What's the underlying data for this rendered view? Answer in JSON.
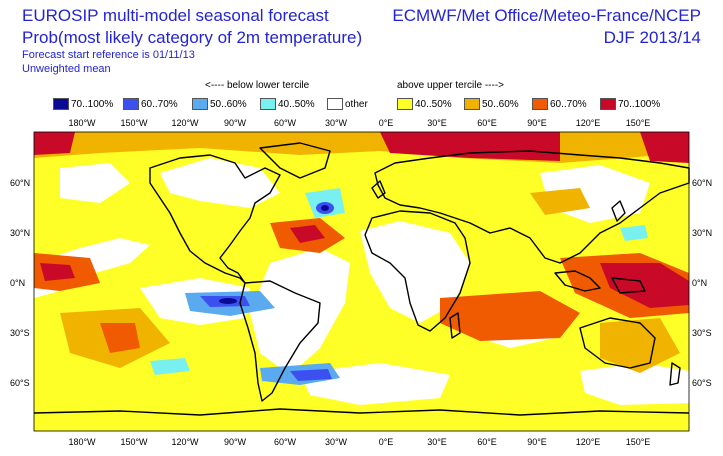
{
  "header": {
    "title_line1": "EUROSIP multi-model seasonal forecast",
    "title_line2": "Prob(most likely category of 2m temperature)",
    "forecast_ref": "Forecast start reference is 01/11/13",
    "weighting": "Unweighted mean",
    "centres": "ECMWF/Met Office/Meteo-France/NCEP",
    "season": "DJF 2013/14"
  },
  "legend": {
    "below_caption": "<---- below lower tercile",
    "above_caption": "above upper tercile ---->",
    "items": [
      {
        "label": "70..100%",
        "color": "#0a0a96"
      },
      {
        "label": "60..70%",
        "color": "#3c50f0"
      },
      {
        "label": "50..60%",
        "color": "#5aaaf0"
      },
      {
        "label": "40..50%",
        "color": "#78f0f0"
      },
      {
        "label": "other",
        "color": "#ffffff"
      },
      {
        "label": "40..50%",
        "color": "#ffff28"
      },
      {
        "label": "50..60%",
        "color": "#f0b400"
      },
      {
        "label": "60..70%",
        "color": "#f05a00"
      },
      {
        "label": "70..100%",
        "color": "#c80a28"
      }
    ]
  },
  "map": {
    "lon_labels": [
      "180°W",
      "150°W",
      "120°W",
      "90°W",
      "60°W",
      "30°W",
      "0°E",
      "30°E",
      "60°E",
      "90°E",
      "120°E",
      "150°E"
    ],
    "lat_labels": [
      "60°N",
      "30°N",
      "0°N",
      "30°S",
      "60°S"
    ],
    "background_color": "#ffff28",
    "coastline_color": "#000000"
  }
}
